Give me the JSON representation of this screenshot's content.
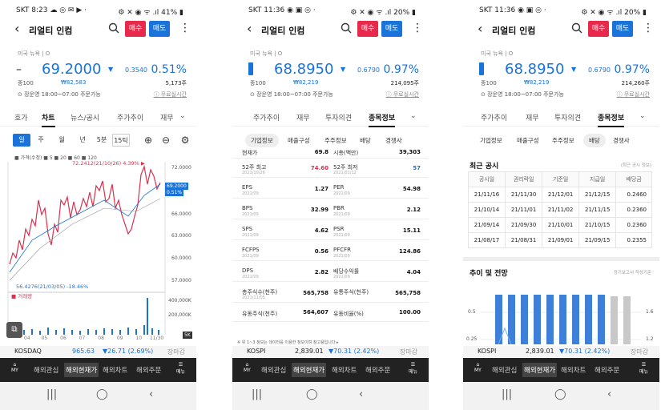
{
  "screen1": {
    "status": {
      "left": "SKT 8:23 ☁ ◎ ✉ ▶ ·",
      "right": "⚙ ✕ ◉ ᯤ .ıl 41% ▮"
    },
    "stock_name": "리얼티 인컴",
    "buy": "매수",
    "sell": "매도",
    "market": "미국 뉴욕 | O",
    "price": "69.2000",
    "change": "0.3540",
    "pct": "0.51%",
    "prev_label": "종100",
    "krw": "₩82,583",
    "volume": "5,173주",
    "session": "장운영 18:00~07:00 주문가능",
    "quote_type": "무료실시간",
    "tabs": [
      "호가",
      "차트",
      "뉴스/공시",
      "주가추이",
      "재무"
    ],
    "toolbar": {
      "day": "일",
      "week": "주",
      "month": "월",
      "year": "년",
      "m5": "5분",
      "t15": "15틱"
    },
    "legend": "■ 가격(수정) ■ 5 ■ 20 ■ 60 ■ 120",
    "high_label": "72.2412(21/10/26) 4.39% ▶",
    "low_label": "56.4276(21/03/05) -18.46%",
    "vol_label": "■ 거래량",
    "axis": [
      "72.0000",
      "69.2000",
      "0.51%",
      "66.0000",
      "63.0000",
      "60.0000",
      "57.0000",
      "400,000K",
      "200,000K",
      "5K",
      "200번"
    ],
    "dates": [
      "07",
      "04",
      "05",
      "06",
      "07",
      "08",
      "09",
      "10",
      "11",
      "11/30"
    ],
    "index": {
      "name": "KOSDAQ",
      "value": "965.63",
      "chg": "▼26.71 (2.69%)",
      "state": "장마감"
    },
    "nav": [
      "해외관심",
      "해외현재가",
      "해외차트",
      "해외주문"
    ]
  },
  "screen2": {
    "status": {
      "left": "SKT 11:36 ◉ ▣ ◎ ·",
      "right": "⚙ ✕ ◉ ᯤ .ıl 20% ▮"
    },
    "stock_name": "리얼티 인컴",
    "buy": "매수",
    "sell": "매도",
    "market": "미국 뉴욕 | O",
    "price": "68.8950",
    "change": "0.6790",
    "pct": "0.97%",
    "prev_label": "종100",
    "krw": "₩82,219",
    "volume": "214,095주",
    "session": "장운영 18:00~07:00 주문가능",
    "quote_type": "무료실시간",
    "tabs": [
      "주가추이",
      "재무",
      "투자의견",
      "종목정보"
    ],
    "subtabs": [
      "기업정보",
      "매출구성",
      "주주정보",
      "배당",
      "경쟁사"
    ],
    "rows": [
      {
        "k1": "현재가",
        "s1": "",
        "v1": "69.8",
        "k2": "시총(백만)",
        "s2": "",
        "v2": "39,303"
      },
      {
        "k1": "52주 최고",
        "s1": "2021/10/26",
        "v1": "74.60",
        "k2": "52주 최저",
        "s2": "2021/01/12",
        "v2": "57"
      },
      {
        "k1": "EPS",
        "s1": "2021/09",
        "v1": "1.27",
        "k2": "PER",
        "s2": "2021/09",
        "v2": "54.98"
      },
      {
        "k1": "BPS",
        "s1": "2021/09",
        "v1": "32.99",
        "k2": "PBR",
        "s2": "2021/09",
        "v2": "2.12"
      },
      {
        "k1": "SPS",
        "s1": "2021/09",
        "v1": "4.62",
        "k2": "PSR",
        "s2": "2021/09",
        "v2": "15.11"
      },
      {
        "k1": "FCFPS",
        "s1": "2021/09",
        "v1": "0.56",
        "k2": "PFCFR",
        "s2": "2021/09",
        "v2": "124.86"
      },
      {
        "k1": "DPS",
        "s1": "2021/09",
        "v1": "2.82",
        "k2": "배당수익률",
        "s2": "2021/09",
        "v2": "4.04"
      },
      {
        "k1": "총주식수(천주)",
        "s1": "2021/11/05",
        "v1": "565,758",
        "k2": "유통주식(천주)",
        "s2": "",
        "v2": "565,758"
      },
      {
        "k1": "유동주식(천주)",
        "s1": "",
        "v1": "564,607",
        "k2": "유동비율(%)",
        "s2": "",
        "v2": "100.00"
      }
    ],
    "footnote": "※ 위 1~3 정보는 데이터를 이용한 정보이며 참고용입니다 ▸",
    "index": {
      "name": "KOSPI",
      "value": "2,839.01",
      "chg": "▼70.31 (2.42%)",
      "state": "장마감"
    },
    "nav": [
      "해외관심",
      "해외현재가",
      "해외차트",
      "해외주문"
    ]
  },
  "screen3": {
    "status": {
      "left": "SKT 11:36 ◉ ▣ ◎ ·",
      "right": "⚙ ✕ ◉ ᯤ .ıl 20% ▮"
    },
    "stock_name": "리얼티 인컴",
    "buy": "매수",
    "sell": "매도",
    "market": "미국 뉴욕 | O",
    "price": "68.8950",
    "change": "0.6790",
    "pct": "0.97%",
    "prev_label": "종100",
    "krw": "₩82,219",
    "volume": "214,260주",
    "session": "장운영 18:00~07:00 주문가능",
    "quote_type": "무료실시간",
    "tabs": [
      "주가추이",
      "재무",
      "투자의견",
      "종목정보"
    ],
    "subtabs": [
      "기업정보",
      "매출구성",
      "주주정보",
      "배당",
      "경쟁사"
    ],
    "recent_title": "최근 공시",
    "recent_note": "(최근 공시 정보)",
    "div_headers": [
      "공시일",
      "권리락일",
      "기준일",
      "지급일",
      "배당금"
    ],
    "div_rows": [
      [
        "21/11/16",
        "21/11/30",
        "21/12/01",
        "21/12/15",
        "0.2460"
      ],
      [
        "21/10/14",
        "21/11/01",
        "21/11/02",
        "21/11/15",
        "0.2360"
      ],
      [
        "21/09/14",
        "21/09/30",
        "21/10/01",
        "21/10/15",
        "0.2360"
      ],
      [
        "21/08/17",
        "21/08/31",
        "21/09/01",
        "21/09/15",
        "0.2355"
      ]
    ],
    "trend_title": "추이 및 전망",
    "trend_note": "정기보고서 작성기준",
    "y_left": [
      "0.5",
      "0.25"
    ],
    "y_right": [
      "1.6",
      "1.4",
      "1.2"
    ],
    "index": {
      "name": "KOSPI",
      "value": "2,839.01",
      "chg": "▼70.31 (2.42%)",
      "state": "장마감"
    },
    "nav": [
      "해외관심",
      "해외현재가",
      "해외차트",
      "해외주문"
    ]
  },
  "common": {
    "home": "MY",
    "menu": "메뉴",
    "sys": [
      "|||",
      "◯",
      "‹"
    ]
  }
}
